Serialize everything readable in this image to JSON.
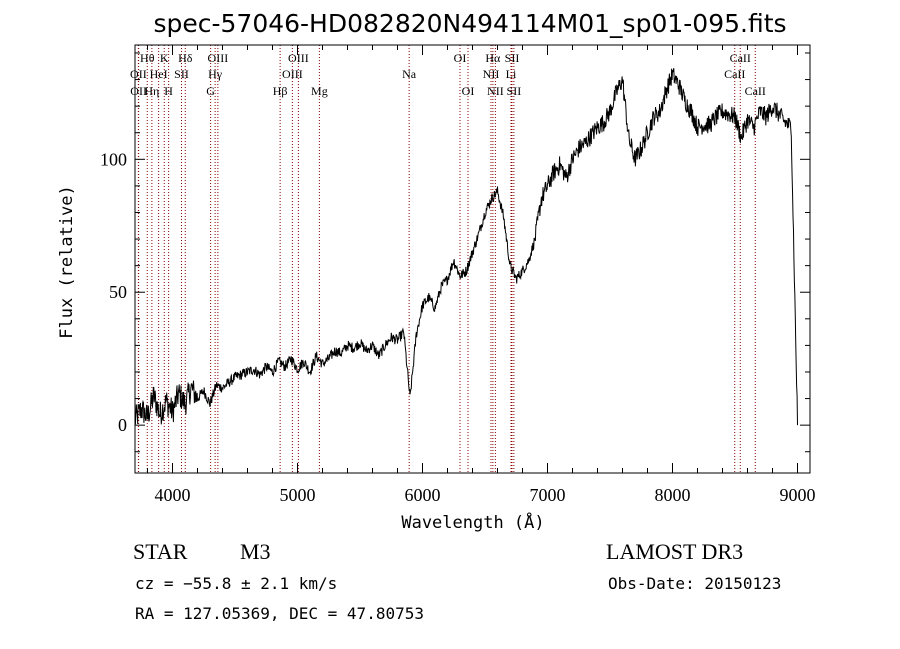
{
  "chart_data": {
    "type": "line",
    "title": "spec-57046-HD082820N494114M01_sp01-095.fits",
    "xlabel": "Wavelength (Å)",
    "ylabel": "Flux (relative)",
    "xlim": [
      3700,
      9100
    ],
    "ylim": [
      -18,
      143
    ],
    "xticks": [
      {
        "value": 4000,
        "label": "4000"
      },
      {
        "value": 5000,
        "label": "5000"
      },
      {
        "value": 6000,
        "label": "6000"
      },
      {
        "value": 7000,
        "label": "7000"
      },
      {
        "value": 8000,
        "label": "8000"
      },
      {
        "value": 9000,
        "label": "9000"
      }
    ],
    "yticks": [
      {
        "value": 0,
        "label": "0"
      },
      {
        "value": 50,
        "label": "50"
      },
      {
        "value": 100,
        "label": "100"
      }
    ],
    "series": [
      {
        "x": [
          3700,
          3750,
          3800,
          3850,
          3900,
          3950,
          4000,
          4050,
          4100,
          4150,
          4200,
          4250,
          4300,
          4350,
          4400,
          4450,
          4500,
          4550,
          4600,
          4650,
          4700,
          4750,
          4800,
          4850,
          4900,
          4950,
          5000,
          5050,
          5100,
          5150,
          5200,
          5250,
          5300,
          5350,
          5400,
          5450,
          5500,
          5550,
          5600,
          5650,
          5700,
          5750,
          5800,
          5850,
          5900,
          5950,
          6000,
          6050,
          6100,
          6150,
          6200,
          6250,
          6300,
          6350,
          6400,
          6450,
          6500,
          6550,
          6600,
          6650,
          6700,
          6750,
          6800,
          6850,
          6900,
          6950,
          7000,
          7050,
          7100,
          7150,
          7200,
          7250,
          7300,
          7350,
          7400,
          7450,
          7500,
          7550,
          7600,
          7650,
          7700,
          7750,
          7800,
          7850,
          7900,
          7950,
          8000,
          8050,
          8100,
          8150,
          8200,
          8250,
          8300,
          8350,
          8400,
          8450,
          8500,
          8550,
          8600,
          8650,
          8700,
          8750,
          8800,
          8850,
          8900,
          8950,
          9000
        ],
        "y": [
          2,
          6,
          3,
          11,
          4,
          9,
          5,
          12,
          8,
          14,
          10,
          13,
          8,
          15,
          14,
          16,
          18,
          19,
          20,
          21,
          19,
          22,
          20,
          24,
          22,
          25,
          21,
          24,
          20,
          26,
          23,
          25,
          28,
          27,
          30,
          29,
          31,
          28,
          30,
          26,
          30,
          33,
          32,
          35,
          10,
          34,
          45,
          48,
          44,
          52,
          55,
          62,
          56,
          58,
          65,
          72,
          80,
          85,
          88,
          78,
          60,
          55,
          58,
          62,
          70,
          85,
          90,
          95,
          98,
          93,
          100,
          104,
          106,
          109,
          112,
          114,
          118,
          125,
          130,
          108,
          100,
          104,
          110,
          116,
          118,
          126,
          132,
          128,
          122,
          118,
          112,
          113,
          113,
          116,
          118,
          117,
          116,
          108,
          115,
          112,
          118,
          116,
          120,
          117,
          114,
          112,
          0
        ]
      }
    ],
    "spectral_lines": [
      {
        "name": "Hθ",
        "x": 3798,
        "row": 1
      },
      {
        "name": "OII",
        "x": 3727,
        "row": 2
      },
      {
        "name": "OII",
        "x": 3729,
        "row": 3
      },
      {
        "name": "Hη",
        "x": 3835,
        "row": 3
      },
      {
        "name": "HeI",
        "x": 3889,
        "row": 2
      },
      {
        "name": "K",
        "x": 3934,
        "row": 1
      },
      {
        "name": "H",
        "x": 3969,
        "row": 3
      },
      {
        "name": "SII",
        "x": 4072,
        "row": 2
      },
      {
        "name": "Hδ",
        "x": 4102,
        "row": 1
      },
      {
        "name": "G",
        "x": 4305,
        "row": 3
      },
      {
        "name": "Hγ",
        "x": 4341,
        "row": 2
      },
      {
        "name": "OIII",
        "x": 4363,
        "row": 1
      },
      {
        "name": "Hβ",
        "x": 4861,
        "row": 3
      },
      {
        "name": "OIII",
        "x": 4959,
        "row": 2
      },
      {
        "name": "OIII",
        "x": 5007,
        "row": 1
      },
      {
        "name": "Mg",
        "x": 5175,
        "row": 3
      },
      {
        "name": "Na",
        "x": 5893,
        "row": 2
      },
      {
        "name": "OI",
        "x": 6300,
        "row": 1
      },
      {
        "name": "OI",
        "x": 6364,
        "row": 3
      },
      {
        "name": "NII",
        "x": 6548,
        "row": 2
      },
      {
        "name": "Hα",
        "x": 6563,
        "row": 1
      },
      {
        "name": "NII",
        "x": 6583,
        "row": 3
      },
      {
        "name": "Li",
        "x": 6708,
        "row": 2
      },
      {
        "name": "SII",
        "x": 6716,
        "row": 1
      },
      {
        "name": "SII",
        "x": 6731,
        "row": 3
      },
      {
        "name": "CaII",
        "x": 8498,
        "row": 2
      },
      {
        "name": "CaII",
        "x": 8542,
        "row": 1
      },
      {
        "name": "CaII",
        "x": 8662,
        "row": 3
      }
    ]
  },
  "info": {
    "class": "STAR",
    "subclass": "M3",
    "survey": "LAMOST DR3",
    "cz": "cz = −55.8 ± 2.1 km/s",
    "obs_date": "Obs-Date: 20150123",
    "coords": "RA = 127.05369, DEC =  47.80753"
  },
  "colors": {
    "spectrum": "#000000",
    "line_markers": "#8b0000",
    "axes": "#000000"
  }
}
